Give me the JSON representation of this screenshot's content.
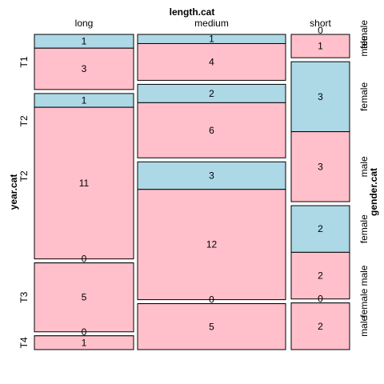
{
  "chart_data": {
    "type": "mosaic",
    "top_variable": "length.cat",
    "left_variable": "year.cat",
    "right_variable": "gender.cat",
    "length_levels": [
      "long",
      "medium",
      "short"
    ],
    "year_levels": [
      "T1",
      "T2",
      "T3",
      "T4"
    ],
    "gender_levels": [
      "female",
      "male"
    ],
    "colors": {
      "female": "#add8e6",
      "male": "#ffc0cb",
      "border": "#000000"
    },
    "counts": {
      "long": {
        "T1": {
          "female": 1,
          "male": 3
        },
        "T2": {
          "female": 1,
          "male": 11
        },
        "T3": {
          "female": 0,
          "male": 5
        },
        "T4": {
          "female": 0,
          "male": 1
        }
      },
      "medium": {
        "T1": {
          "female": 1,
          "male": 4
        },
        "T2": {
          "female": 2,
          "male": 6
        },
        "T3": {
          "female": 3,
          "male": 12
        },
        "T4": {
          "female": 0,
          "male": 5
        }
      },
      "short": {
        "T1": {
          "female": 0,
          "male": 1
        },
        "T2": {
          "female": 3,
          "male": 3
        },
        "T3": {
          "female": 2,
          "male": 2
        },
        "T4": {
          "female": 0,
          "male": 2
        }
      }
    },
    "medium_year_labels": [
      "",
      "T2",
      "",
      ""
    ]
  }
}
